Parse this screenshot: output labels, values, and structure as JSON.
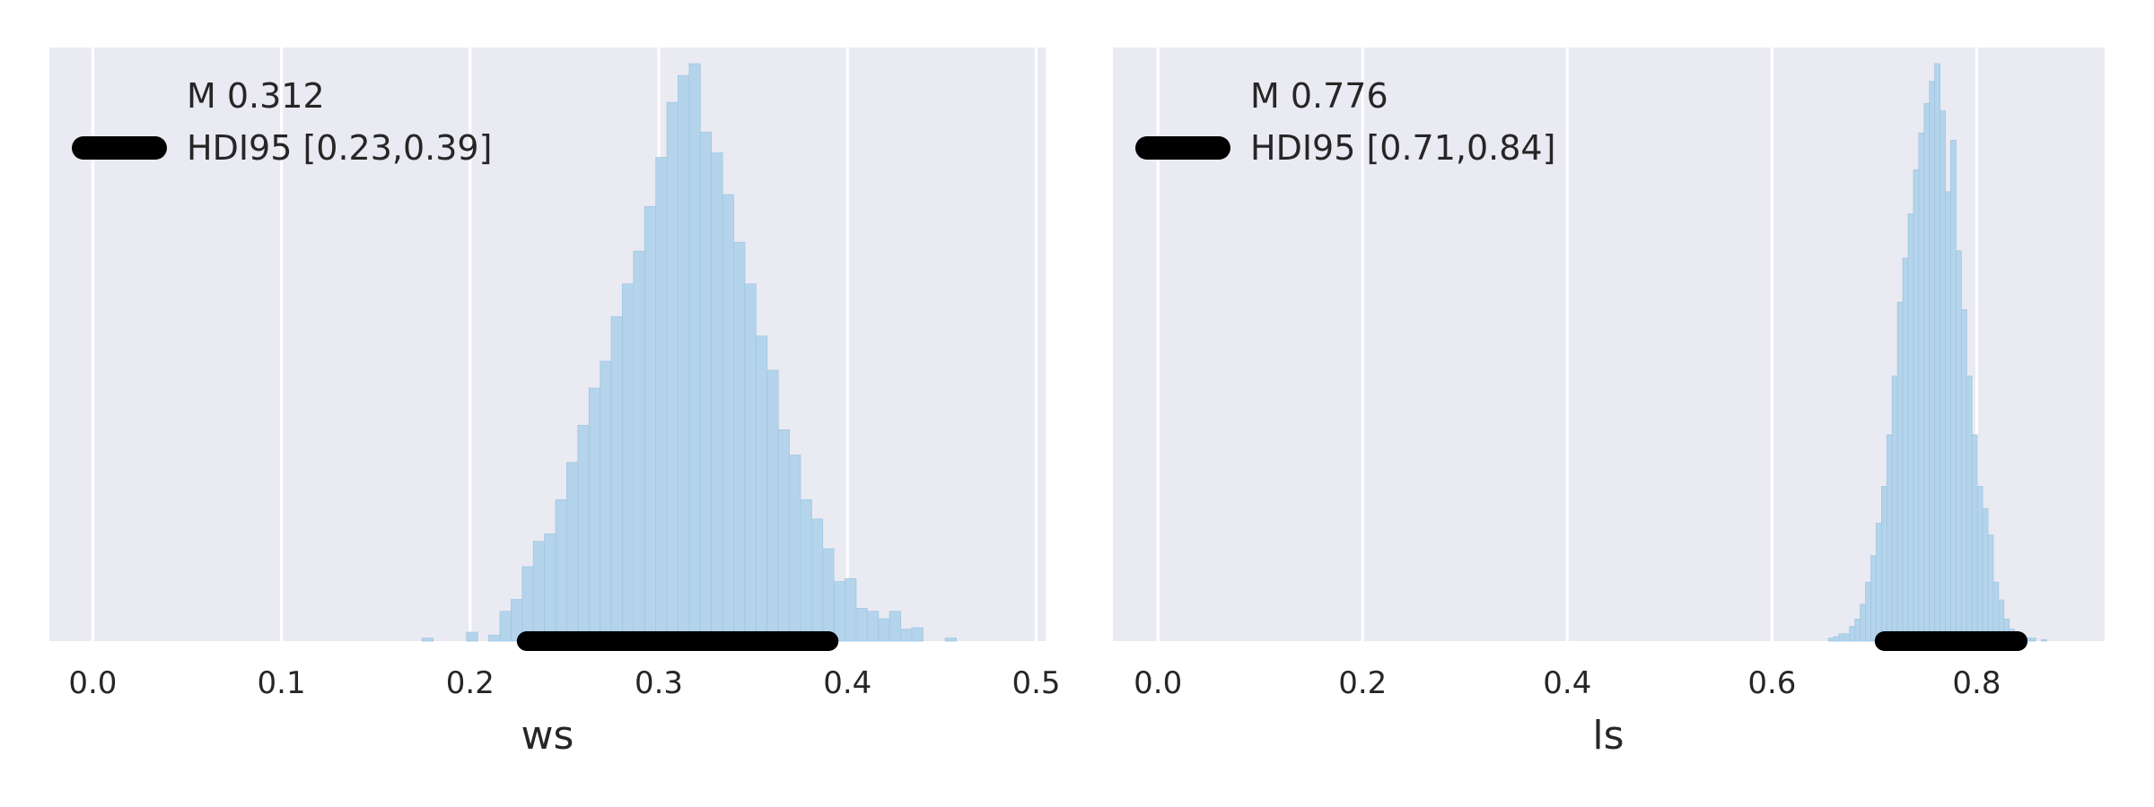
{
  "colors": {
    "panel_bg": "#eaeaf2",
    "grid": "#ffffff",
    "hist_fill": "#b3d4eb",
    "hist_edge": "#a3c6e3",
    "hdi_bar": "#000000",
    "text": "#262626"
  },
  "chart_data": [
    {
      "type": "bar",
      "subtype": "histogram",
      "xlabel": "ws",
      "xlim": [
        -0.023,
        0.505
      ],
      "xticks": [
        0.0,
        0.1,
        0.2,
        0.3,
        0.4,
        0.5
      ],
      "xtick_labels": [
        "0.0",
        "0.1",
        "0.2",
        "0.3",
        "0.4",
        "0.5"
      ],
      "grid": true,
      "legend": {
        "placement": "top-left",
        "mean_label": "M 0.312",
        "hdi_label": "HDI95 [0.23,0.39]"
      },
      "hdi": [
        0.23,
        0.39
      ],
      "mean": 0.312,
      "histogram": {
        "bin_start": 0.1745,
        "bin_width": 0.0059,
        "heights": [
          2,
          0,
          0,
          0,
          6,
          0,
          4,
          20,
          28,
          50,
          67,
          72,
          95,
          120,
          145,
          170,
          188,
          218,
          240,
          262,
          292,
          325,
          362,
          380,
          388,
          342,
          328,
          300,
          268,
          240,
          205,
          182,
          142,
          125,
          95,
          82,
          62,
          40,
          42,
          22,
          20,
          15,
          20,
          8,
          9,
          0,
          0,
          2
        ]
      }
    },
    {
      "type": "bar",
      "subtype": "histogram",
      "xlabel": "ls",
      "xlim": [
        -0.044,
        0.925
      ],
      "xticks": [
        0.0,
        0.2,
        0.4,
        0.6,
        0.8
      ],
      "xtick_labels": [
        "0.0",
        "0.2",
        "0.4",
        "0.6",
        "0.8"
      ],
      "grid": true,
      "legend": {
        "placement": "top-left",
        "mean_label": "M 0.776",
        "hdi_label": "HDI95 [0.71,0.84]"
      },
      "hdi": [
        0.71,
        0.84
      ],
      "mean": 0.776,
      "histogram": {
        "bin_start": 0.655,
        "bin_width": 0.0052,
        "heights": [
          2,
          3,
          5,
          5,
          10,
          15,
          25,
          40,
          58,
          80,
          105,
          140,
          180,
          230,
          260,
          290,
          320,
          345,
          365,
          380,
          392,
          360,
          305,
          340,
          265,
          225,
          180,
          140,
          105,
          90,
          72,
          40,
          28,
          15,
          8,
          5,
          4,
          2,
          2,
          0,
          1
        ]
      }
    }
  ]
}
